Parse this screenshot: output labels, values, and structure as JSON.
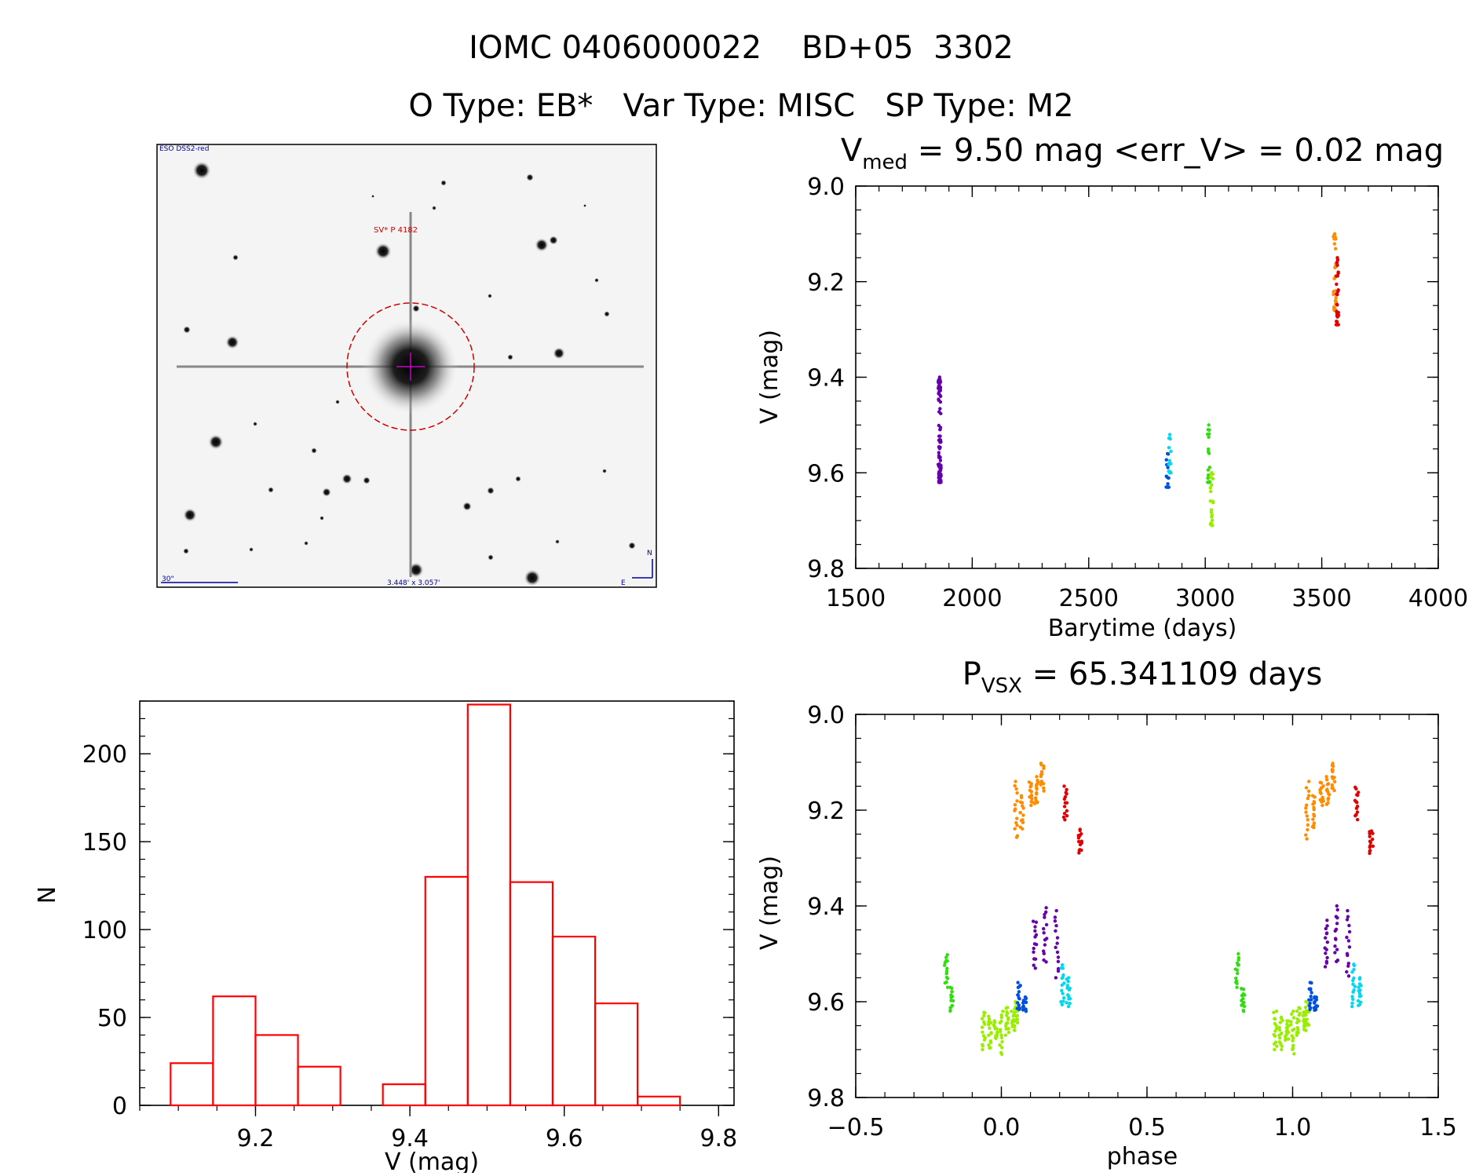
{
  "header": {
    "title": "IOMC 0406000022    BD+05  3302",
    "subtitle": "O Type: EB*   Var Type: MISC   SP Type: M2"
  },
  "finder": {
    "survey_label": "ESO DSS2-red",
    "object_label": "SV* P 4182",
    "scale_label": "30\"",
    "size_label": "3.448' x 3.057'",
    "north_label": "N",
    "east_label": "E"
  },
  "colors": {
    "orange": "#ff8c00",
    "red": "#e00000",
    "purple": "#6600aa",
    "blue": "#0050e0",
    "cyan": "#00d8f0",
    "green": "#33dd11",
    "lime": "#99ee00",
    "hist": "#ff0000",
    "finder_circle": "#cc0000",
    "finder_cross": "#cc00cc",
    "finder_label": "#000099"
  },
  "chart_data": [
    {
      "id": "lightcurve",
      "type": "scatter",
      "title_main": "V",
      "title_sub": "med",
      "title_rest": " = 9.50 mag <err_V> = 0.02 mag",
      "xlabel": "Barytime (days)",
      "ylabel": "V (mag)",
      "xlim": [
        1500,
        4000
      ],
      "ylim": [
        9.8,
        9.0
      ],
      "xticks": [
        "1500",
        "2000",
        "2500",
        "3000",
        "3500",
        "4000"
      ],
      "yticks": [
        "9.0",
        "9.2",
        "9.4",
        "9.6",
        "9.8"
      ],
      "series": [
        {
          "color": "purple",
          "x": 1860,
          "x_spread": 6,
          "y_min": 9.4,
          "y_max": 9.62,
          "n": 90
        },
        {
          "color": "blue",
          "x": 2838,
          "x_spread": 6,
          "y_min": 9.56,
          "y_max": 9.63,
          "n": 14
        },
        {
          "color": "cyan",
          "x": 2848,
          "x_spread": 5,
          "y_min": 9.52,
          "y_max": 9.6,
          "n": 14
        },
        {
          "color": "green",
          "x": 3015,
          "x_spread": 5,
          "y_min": 9.5,
          "y_max": 9.62,
          "n": 20
        },
        {
          "color": "lime",
          "x": 3028,
          "x_spread": 6,
          "y_min": 9.6,
          "y_max": 9.71,
          "n": 22
        },
        {
          "color": "orange",
          "x": 3556,
          "x_spread": 6,
          "y_min": 9.1,
          "y_max": 9.26,
          "n": 30
        },
        {
          "color": "red",
          "x": 3567,
          "x_spread": 5,
          "y_min": 9.15,
          "y_max": 9.29,
          "n": 30
        }
      ]
    },
    {
      "id": "histogram",
      "type": "bar",
      "xlabel": "V (mag)",
      "ylabel": "N",
      "xlim": [
        9.05,
        9.82
      ],
      "ylim": [
        0,
        230
      ],
      "xticks": [
        "9.2",
        "9.4",
        "9.6",
        "9.8"
      ],
      "yticks": [
        "0",
        "50",
        "100",
        "150",
        "200"
      ],
      "bin_edges": [
        9.09,
        9.145,
        9.2,
        9.255,
        9.31,
        9.365,
        9.42,
        9.475,
        9.53,
        9.585,
        9.64,
        9.695,
        9.75
      ],
      "values": [
        24,
        62,
        40,
        22,
        0,
        12,
        130,
        228,
        127,
        96,
        58,
        5
      ]
    },
    {
      "id": "phased",
      "type": "scatter",
      "title_main": "P",
      "title_sub": "VSX",
      "title_rest": " = 65.341109 days",
      "xlabel": "phase",
      "ylabel": "V (mag)",
      "xlim": [
        -0.5,
        1.5
      ],
      "ylim": [
        9.8,
        9.0
      ],
      "xticks": [
        "−0.5",
        "0.0",
        "0.5",
        "1.0",
        "1.5"
      ],
      "yticks": [
        "9.0",
        "9.2",
        "9.4",
        "9.6",
        "9.8"
      ],
      "groups": [
        {
          "color": "green",
          "x": -0.19,
          "y_min": 9.5,
          "y_max": 9.57
        },
        {
          "color": "green",
          "x": -0.17,
          "y_min": 9.57,
          "y_max": 9.62
        },
        {
          "color": "lime",
          "x": -0.06,
          "y_min": 9.62,
          "y_max": 9.7
        },
        {
          "color": "lime",
          "x": -0.04,
          "y_min": 9.63,
          "y_max": 9.7
        },
        {
          "color": "lime",
          "x": -0.02,
          "y_min": 9.64,
          "y_max": 9.68
        },
        {
          "color": "lime",
          "x": 0.0,
          "y_min": 9.62,
          "y_max": 9.71
        },
        {
          "color": "lime",
          "x": 0.02,
          "y_min": 9.61,
          "y_max": 9.67
        },
        {
          "color": "lime",
          "x": 0.04,
          "y_min": 9.62,
          "y_max": 9.66
        },
        {
          "color": "lime",
          "x": 0.05,
          "y_min": 9.6,
          "y_max": 9.65
        },
        {
          "color": "blue",
          "x": 0.06,
          "y_min": 9.56,
          "y_max": 9.62
        },
        {
          "color": "blue",
          "x": 0.08,
          "y_min": 9.59,
          "y_max": 9.62
        },
        {
          "color": "orange",
          "x": 0.05,
          "y_min": 9.14,
          "y_max": 9.26
        },
        {
          "color": "orange",
          "x": 0.07,
          "y_min": 9.17,
          "y_max": 9.24
        },
        {
          "color": "orange",
          "x": 0.1,
          "y_min": 9.14,
          "y_max": 9.19
        },
        {
          "color": "orange",
          "x": 0.12,
          "y_min": 9.13,
          "y_max": 9.19
        },
        {
          "color": "orange",
          "x": 0.14,
          "y_min": 9.1,
          "y_max": 9.16
        },
        {
          "color": "purple",
          "x": 0.115,
          "y_min": 9.43,
          "y_max": 9.53
        },
        {
          "color": "purple",
          "x": 0.15,
          "y_min": 9.4,
          "y_max": 9.52
        },
        {
          "color": "purple",
          "x": 0.19,
          "y_min": 9.41,
          "y_max": 9.55
        },
        {
          "color": "cyan",
          "x": 0.21,
          "y_min": 9.52,
          "y_max": 9.61
        },
        {
          "color": "cyan",
          "x": 0.23,
          "y_min": 9.55,
          "y_max": 9.61
        },
        {
          "color": "red",
          "x": 0.22,
          "y_min": 9.15,
          "y_max": 9.22
        },
        {
          "color": "red",
          "x": 0.27,
          "y_min": 9.24,
          "y_max": 9.29
        }
      ]
    }
  ]
}
